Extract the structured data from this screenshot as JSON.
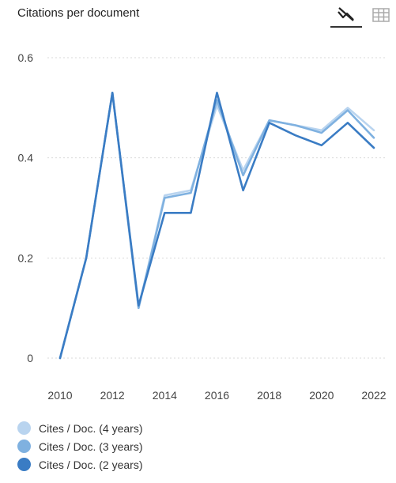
{
  "header": {
    "title": "Citations per document",
    "chart_view_icon": "line-chart-icon",
    "table_view_icon": "table-grid-icon"
  },
  "colors": {
    "series_4y": "#b9d4ef",
    "series_3y": "#7fb1e0",
    "series_2y": "#3a7cc4",
    "grid": "#d9d9d9"
  },
  "chart_data": {
    "type": "line",
    "title": "Citations per document",
    "xlabel": "",
    "ylabel": "",
    "x": [
      2010,
      2011,
      2012,
      2013,
      2014,
      2015,
      2016,
      2017,
      2018,
      2019,
      2020,
      2021,
      2022
    ],
    "x_ticks": [
      "2010",
      "2012",
      "2014",
      "2016",
      "2018",
      "2020",
      "2022"
    ],
    "y_ticks": [
      "0",
      "0.2",
      "0.4",
      "0.6"
    ],
    "xlim": [
      2010,
      2022
    ],
    "ylim": [
      0,
      0.6
    ],
    "grid": true,
    "legend_position": "bottom",
    "series": [
      {
        "name": "Cites / Doc. (4 years)",
        "color": "#b9d4ef",
        "values": [
          0,
          0.2,
          0.53,
          0.1,
          0.325,
          0.335,
          0.505,
          0.375,
          0.475,
          0.465,
          0.455,
          0.5,
          0.455
        ]
      },
      {
        "name": "Cites / Doc. (3 years)",
        "color": "#7fb1e0",
        "values": [
          0,
          0.2,
          0.53,
          0.1,
          0.32,
          0.33,
          0.515,
          0.365,
          0.475,
          0.465,
          0.45,
          0.495,
          0.44
        ]
      },
      {
        "name": "Cites / Doc. (2 years)",
        "color": "#3a7cc4",
        "values": [
          0,
          0.2,
          0.53,
          0.105,
          0.29,
          0.29,
          0.53,
          0.335,
          0.47,
          0.445,
          0.425,
          0.47,
          0.42
        ]
      }
    ]
  }
}
